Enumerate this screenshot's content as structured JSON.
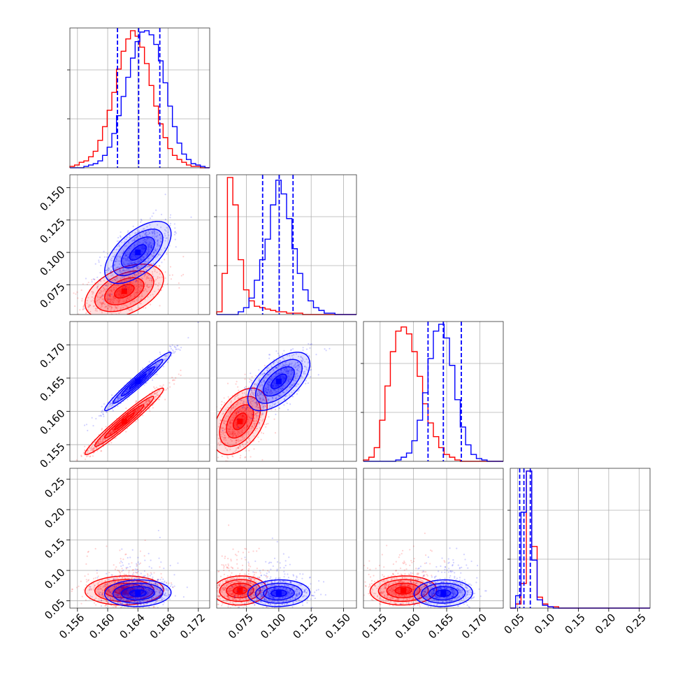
{
  "chart_data": {
    "type": "corner",
    "title": "",
    "parameters": [
      {
        "range": [
          0.155,
          0.1735
        ],
        "ticks": [
          0.156,
          0.16,
          0.164,
          0.168,
          0.172
        ],
        "tick_labels": [
          "0.156",
          "0.160",
          "0.164",
          "0.168",
          "0.172"
        ]
      },
      {
        "range": [
          0.052,
          0.16
        ],
        "ticks": [
          0.075,
          0.1,
          0.125,
          0.15
        ],
        "tick_labels": [
          "0.075",
          "0.100",
          "0.125",
          "0.150"
        ]
      },
      {
        "range": [
          0.1525,
          0.1735
        ],
        "ticks": [
          0.155,
          0.16,
          0.165,
          0.17
        ],
        "tick_labels": [
          "0.155",
          "0.160",
          "0.165",
          "0.170"
        ]
      },
      {
        "range": [
          0.038,
          0.268
        ],
        "ticks": [
          0.05,
          0.1,
          0.15,
          0.2,
          0.25
        ],
        "tick_labels": [
          "0.05",
          "0.10",
          "0.15",
          "0.20",
          "0.25"
        ]
      }
    ],
    "series": [
      {
        "color": "#ff0000",
        "mean": [
          0.1622,
          0.07,
          0.1585,
          0.067
        ],
        "sd": [
          0.0026,
          0.0105,
          0.0025,
          0.012
        ],
        "corr": {
          "0-1": 0.45,
          "0-2": 0.97,
          "1-2": 0.45
        }
      },
      {
        "color": "#0000ff",
        "mean": [
          0.164,
          0.1,
          0.1645,
          0.0625
        ],
        "sd": [
          0.0022,
          0.012,
          0.0022,
          0.011
        ],
        "corr": {
          "0-1": 0.6,
          "0-2": 0.97,
          "1-2": 0.6
        }
      }
    ],
    "histograms": [
      {
        "series": [
          {
            "name": "",
            "edges_range": [
              0.155,
              0.1735
            ],
            "counts": [
              1,
              2,
              4,
              5,
              8,
              12,
              20,
              30,
              42,
              55,
              72,
              85,
              94,
              100,
              96,
              88,
              76,
              60,
              45,
              32,
              22,
              14,
              9,
              6,
              4,
              2,
              1,
              1,
              0,
              0
            ]
          },
          {
            "name": "",
            "edges_range": [
              0.155,
              0.1735
            ],
            "counts": [
              0,
              0,
              0,
              1,
              2,
              3,
              5,
              9,
              15,
              25,
              38,
              52,
              66,
              80,
              92,
              99,
              100,
              97,
              90,
              78,
              62,
              45,
              30,
              18,
              10,
              6,
              3,
              2,
              1,
              0
            ]
          }
        ],
        "quantiles": [
          0.1613,
          0.1641,
          0.1669
        ]
      },
      {
        "series": [
          {
            "name": "",
            "edges_range": [
              0.052,
              0.16
            ],
            "counts": [
              2,
              30,
              100,
              80,
              40,
              18,
              10,
              6,
              5,
              4,
              3,
              2,
              2,
              1,
              1,
              1,
              0,
              0,
              0,
              0,
              0,
              0,
              0,
              0,
              0,
              0
            ]
          },
          {
            "name": "",
            "edges_range": [
              0.052,
              0.16
            ],
            "counts": [
              0,
              0,
              0,
              0,
              2,
              5,
              12,
              25,
              40,
              55,
              80,
              98,
              88,
              70,
              48,
              30,
              18,
              10,
              5,
              3,
              1,
              1,
              0,
              0,
              0,
              0
            ]
          }
        ],
        "quantiles": [
          0.0875,
          0.1003,
          0.111
        ]
      },
      {
        "series": [
          {
            "name": "",
            "edges_range": [
              0.1525,
              0.1735
            ],
            "counts": [
              1,
              3,
              10,
              30,
              55,
              80,
              95,
              98,
              93,
              80,
              62,
              42,
              28,
              18,
              10,
              5,
              3,
              1,
              0,
              0,
              0,
              0,
              0,
              0,
              0,
              0
            ]
          },
          {
            "name": "",
            "edges_range": [
              0.1525,
              0.1735
            ],
            "counts": [
              0,
              0,
              0,
              0,
              0,
              0,
              1,
              3,
              6,
              15,
              30,
              50,
              75,
              95,
              100,
              90,
              70,
              45,
              25,
              12,
              5,
              2,
              1,
              0,
              0,
              0
            ]
          }
        ],
        "quantiles": [
          0.1622,
          0.1645,
          0.1672
        ]
      },
      {
        "series": [
          {
            "name": "",
            "edges_range": [
              0.038,
              0.268
            ],
            "counts": [
              0,
              3,
              18,
              100,
              45,
              8,
              3,
              1,
              1,
              0,
              0,
              0,
              0,
              0,
              0,
              0,
              0,
              0,
              0,
              0,
              0,
              0,
              0,
              0,
              0,
              0
            ]
          },
          {
            "name": "",
            "edges_range": [
              0.038,
              0.268
            ],
            "counts": [
              0,
              9,
              70,
              100,
              35,
              6,
              2,
              1,
              0,
              0,
              0,
              0,
              0,
              0,
              0,
              0,
              0,
              0,
              0,
              0,
              0,
              0,
              0,
              0,
              0,
              0
            ]
          }
        ],
        "quantiles": [
          0.0535,
          0.0605,
          0.071
        ]
      }
    ],
    "contour_levels_sigma": [
      0.5,
      1.0,
      1.5,
      2.0
    ],
    "quantile_line_color": "#0000ff",
    "grid": true
  }
}
